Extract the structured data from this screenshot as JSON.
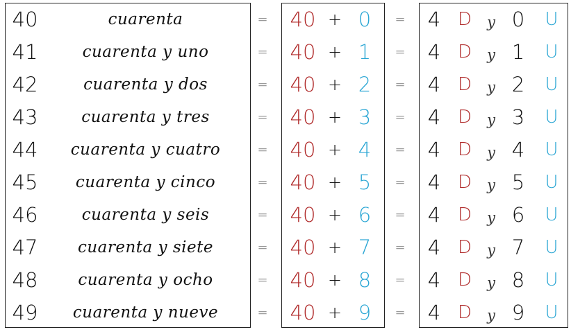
{
  "colors": {
    "tens": "#b02a2a",
    "units": "#2aa6d4"
  },
  "equals": "=",
  "plus": "+",
  "tens_letter": "D",
  "units_letter": "U",
  "and_word": "y",
  "tens_value": "40",
  "tens_digit": "4",
  "rows": [
    {
      "number": "40",
      "words": "cuarenta",
      "unit": "0"
    },
    {
      "number": "41",
      "words": "cuarenta y uno",
      "unit": "1"
    },
    {
      "number": "42",
      "words": "cuarenta y dos",
      "unit": "2"
    },
    {
      "number": "43",
      "words": "cuarenta y tres",
      "unit": "3"
    },
    {
      "number": "44",
      "words": "cuarenta y cuatro",
      "unit": "4"
    },
    {
      "number": "45",
      "words": "cuarenta y cinco",
      "unit": "5"
    },
    {
      "number": "46",
      "words": "cuarenta y seis",
      "unit": "6"
    },
    {
      "number": "47",
      "words": "cuarenta y siete",
      "unit": "7"
    },
    {
      "number": "48",
      "words": "cuarenta y ocho",
      "unit": "8"
    },
    {
      "number": "49",
      "words": "cuarenta y nueve",
      "unit": "9"
    }
  ]
}
